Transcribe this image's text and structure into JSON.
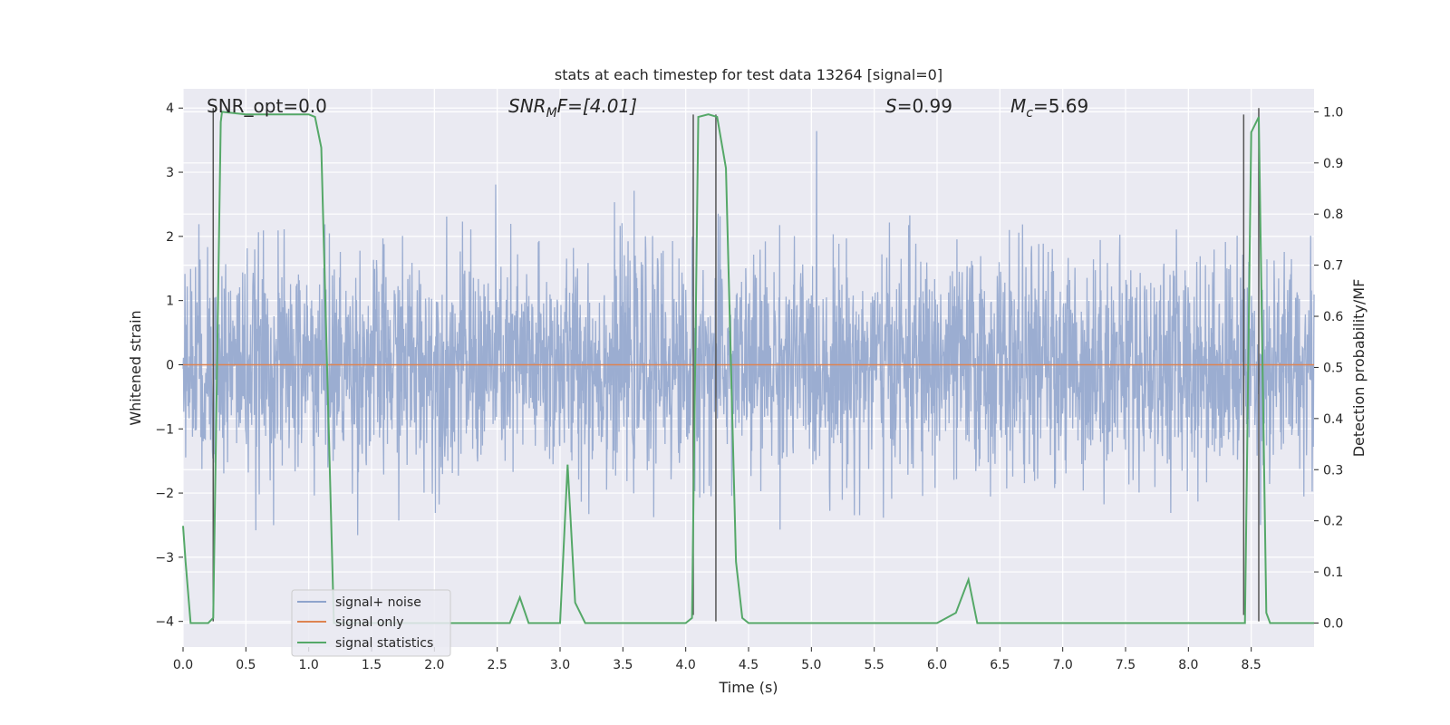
{
  "chart_data": {
    "type": "line",
    "title": "stats at each timestep for test data 13264 [signal=0]",
    "xlabel": "Time (s)",
    "ylabel_left": "Whitened strain",
    "ylabel_right": "Detection probability/MF",
    "xlim": [
      0.0,
      9.0
    ],
    "ylim_left": [
      -4.4,
      4.3
    ],
    "ylim_right": [
      -0.047,
      1.045
    ],
    "x_ticks": [
      "0.0",
      "0.5",
      "1.0",
      "1.5",
      "2.0",
      "2.5",
      "3.0",
      "3.5",
      "4.0",
      "4.5",
      "5.0",
      "5.5",
      "6.0",
      "6.5",
      "7.0",
      "7.5",
      "8.0",
      "8.5"
    ],
    "x_tick_values": [
      0.0,
      0.5,
      1.0,
      1.5,
      2.0,
      2.5,
      3.0,
      3.5,
      4.0,
      4.5,
      5.0,
      5.5,
      6.0,
      6.5,
      7.0,
      7.5,
      8.0,
      8.5
    ],
    "y_left_ticks": [
      "4",
      "3",
      "2",
      "1",
      "0",
      "−1",
      "−2",
      "−3",
      "−4"
    ],
    "y_left_tick_values": [
      4,
      3,
      2,
      1,
      0,
      -1,
      -2,
      -3,
      -4
    ],
    "y_right_ticks": [
      "1.0",
      "0.9",
      "0.8",
      "0.7",
      "0.6",
      "0.5",
      "0.4",
      "0.3",
      "0.2",
      "0.1",
      "0.0"
    ],
    "y_right_tick_values": [
      1.0,
      0.9,
      0.8,
      0.7,
      0.6,
      0.5,
      0.4,
      0.3,
      0.2,
      0.1,
      0.0
    ],
    "grid": true,
    "legend_placement": "lower-left",
    "annotations": {
      "snr_opt": "SNR_opt=0.0",
      "snr_mf": "SNR",
      "snr_mf_sub": "M",
      "snr_mf_rest": "F=[4.01]",
      "s_label": "S",
      "s_value": "=0.99",
      "mc_label": "M",
      "mc_sub": "c",
      "mc_value": "=5.69"
    },
    "series": [
      {
        "name": "signal+ noise",
        "axis": "left",
        "color": "#8fa4cc",
        "description_type": "noise",
        "amplitude_std": 0.85,
        "samples": 3000
      },
      {
        "name": "signal only",
        "axis": "left",
        "color": "#dd8452",
        "x": [
          0.0,
          9.0
        ],
        "y": [
          0.0,
          0.0
        ]
      },
      {
        "name": "signal statistics",
        "axis": "right",
        "color": "#55a868",
        "x": [
          0.0,
          0.02,
          0.06,
          0.2,
          0.24,
          0.3,
          0.31,
          0.5,
          1.0,
          1.05,
          1.1,
          1.2,
          1.3,
          2.6,
          2.68,
          2.75,
          2.85,
          3.0,
          3.06,
          3.12,
          3.2,
          3.5,
          3.75,
          4.0,
          4.05,
          4.1,
          4.18,
          4.25,
          4.32,
          4.4,
          4.45,
          4.5,
          5.0,
          6.0,
          6.15,
          6.25,
          6.32,
          6.5,
          7.0,
          8.0,
          8.45,
          8.5,
          8.56,
          8.62,
          8.65,
          9.0
        ],
        "y": [
          0.19,
          0.12,
          0.0,
          0.0,
          0.01,
          0.98,
          1.0,
          0.995,
          0.995,
          0.99,
          0.93,
          0.0,
          0.0,
          0.0,
          0.05,
          0.0,
          0.0,
          0.0,
          0.31,
          0.04,
          0.0,
          0.0,
          0.0,
          0.0,
          0.01,
          0.99,
          0.995,
          0.99,
          0.89,
          0.12,
          0.01,
          0.0,
          0.0,
          0.0,
          0.02,
          0.085,
          0.0,
          0.0,
          0.0,
          0.0,
          0.0,
          0.96,
          0.99,
          0.02,
          0.0,
          0.0
        ]
      }
    ],
    "vertical_markers": {
      "color": "#555555",
      "x": [
        0.24,
        4.06,
        4.24,
        8.44,
        8.56
      ],
      "y_top": [
        4.0,
        3.9,
        3.9,
        3.9,
        4.0
      ],
      "y_bottom": [
        -4.0,
        -3.9,
        -4.0,
        -3.9,
        -4.0
      ]
    }
  }
}
